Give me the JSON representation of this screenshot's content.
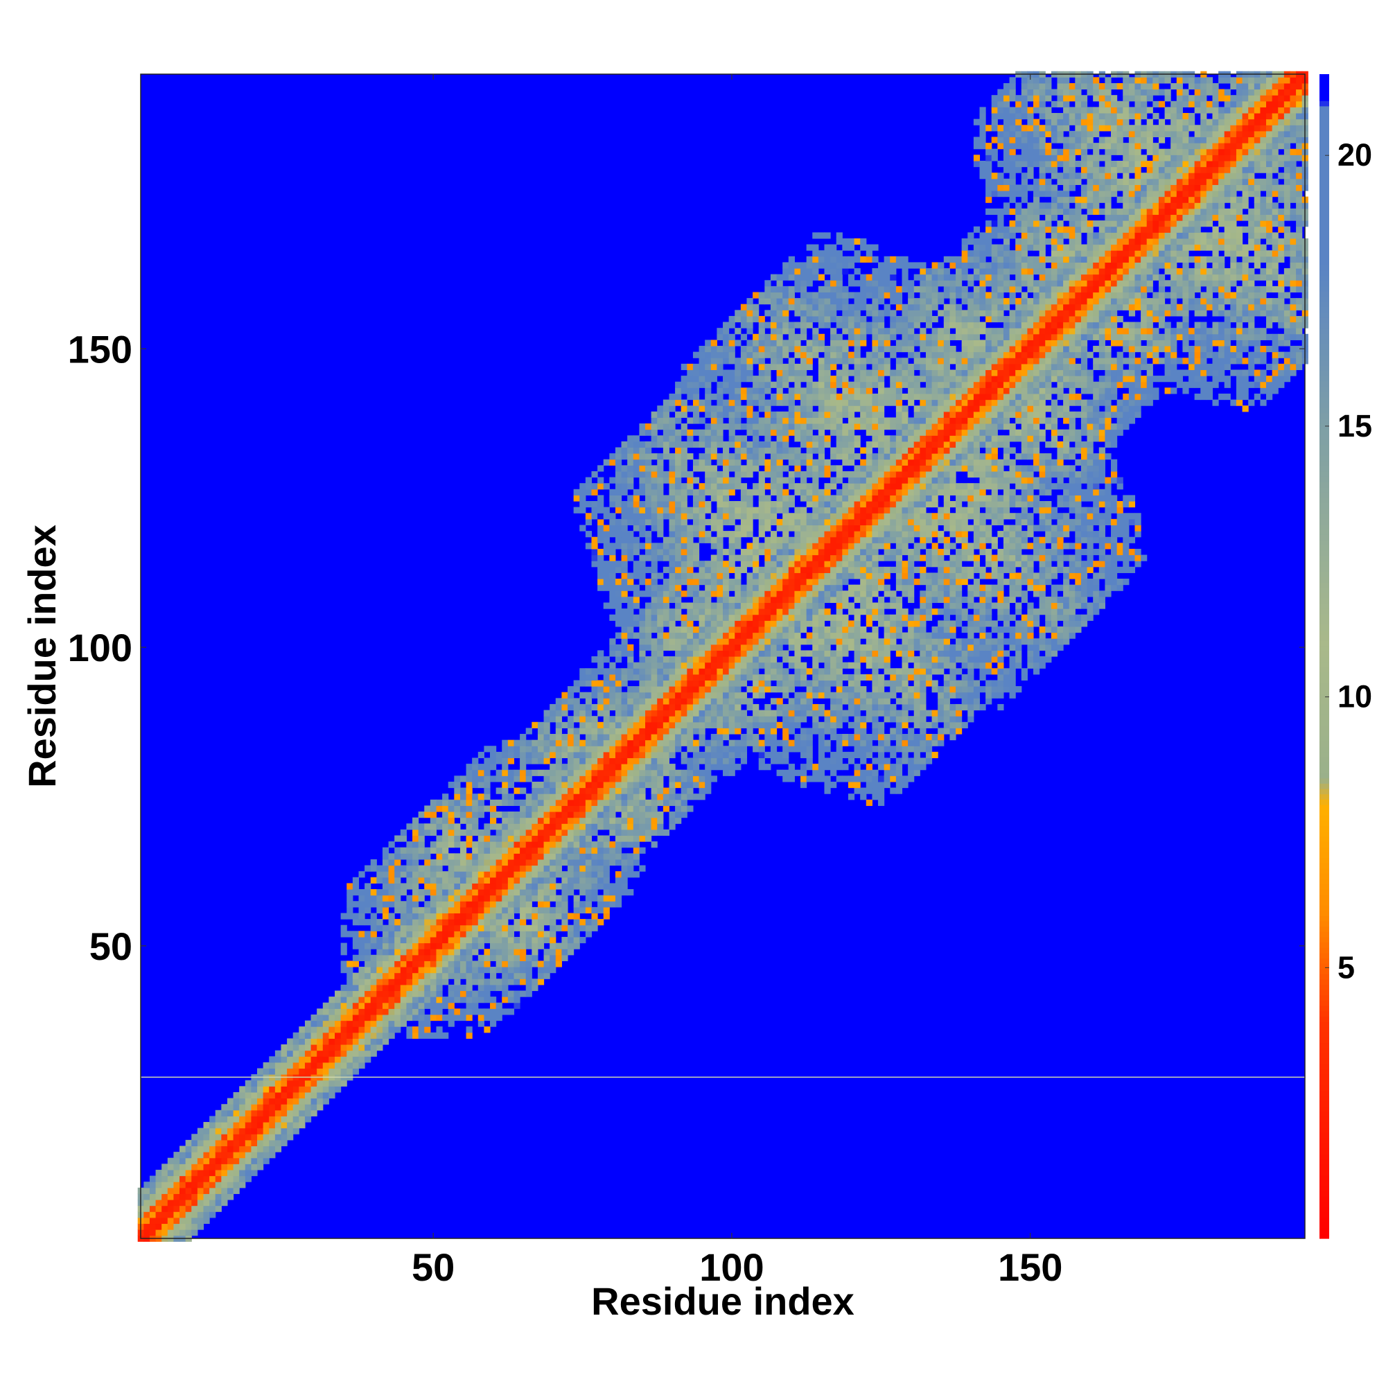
{
  "chart_data": {
    "type": "heatmap",
    "title": "",
    "xlabel": "Residue index",
    "ylabel": "Residue index",
    "xlim": [
      1,
      196
    ],
    "ylim": [
      1,
      196
    ],
    "x_ticks": [
      50,
      100,
      150
    ],
    "y_ticks": [
      50,
      100,
      150
    ],
    "n_residues": 196,
    "colorbar": {
      "range": [
        0,
        21.5
      ],
      "ticks": [
        5,
        10,
        15,
        20
      ],
      "stops": [
        {
          "value": 0,
          "color": "#ff0000"
        },
        {
          "value": 4,
          "color": "#ff3300"
        },
        {
          "value": 6,
          "color": "#ff8c00"
        },
        {
          "value": 8,
          "color": "#ffb000"
        },
        {
          "value": 8.5,
          "color": "#9ab08a"
        },
        {
          "value": 11,
          "color": "#a9b98a"
        },
        {
          "value": 15,
          "color": "#7e9fa6"
        },
        {
          "value": 18,
          "color": "#5a84c4"
        },
        {
          "value": 20.9,
          "color": "#5a84c4"
        },
        {
          "value": 21,
          "color": "#0000ff"
        },
        {
          "value": 21.5,
          "color": "#0000ff"
        }
      ],
      "cutoff_color": "#0000ff"
    },
    "structure": {
      "description_note": "distance map; blue = beyond cutoff",
      "diagonal_band_width": 9,
      "domain_centers": [
        60,
        78,
        98,
        112,
        130,
        145,
        160,
        176
      ],
      "artifact_row": 28
    }
  }
}
